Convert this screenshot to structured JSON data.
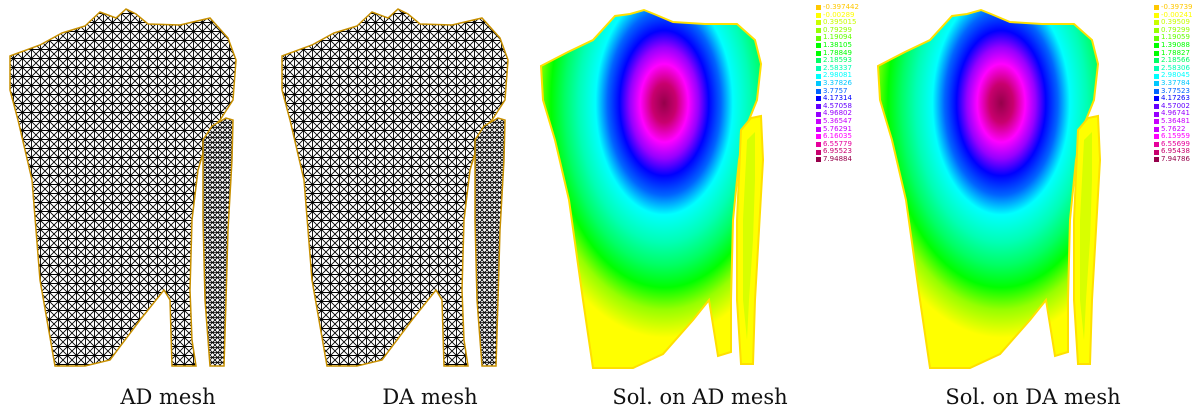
{
  "captions": [
    "AD mesh",
    "DA mesh",
    "Sol. on AD mesh",
    "Sol. on DA mesh"
  ],
  "legend_colors": [
    "#ffc800",
    "#ffff00",
    "#c8ff00",
    "#96ff00",
    "#64ff00",
    "#00ff00",
    "#00ff64",
    "#00ffb4",
    "#00ffff",
    "#00c8ff",
    "#0064ff",
    "#0000ff",
    "#6400ff",
    "#9600ff",
    "#c800ff",
    "#ff00ff",
    "#e6009b",
    "#c8006e",
    "#96004b"
  ],
  "legend_ad": [
    "-0.397442",
    "-0.00289",
    "0.395015",
    "0.79299",
    "1.19094",
    "1.38105",
    "1.78849",
    "2.18593",
    "2.58337",
    "2.98081",
    "3.37826",
    "3.7757",
    "4.17314",
    "4.57058",
    "4.96802",
    "5.36547",
    "5.76291",
    "6.16035",
    "6.55779",
    "6.95523",
    "7.94884"
  ],
  "legend_da": [
    "-0.39739",
    "-0.00241",
    "0.39509",
    "0.79299",
    "1.19059",
    "1.39088",
    "1.78827",
    "2.18566",
    "2.58306",
    "2.98045",
    "3.37784",
    "3.77523",
    "4.17263",
    "4.57002",
    "4.96741",
    "5.36481",
    "5.7622",
    "6.15959",
    "6.55699",
    "6.95438",
    "7.94786"
  ]
}
